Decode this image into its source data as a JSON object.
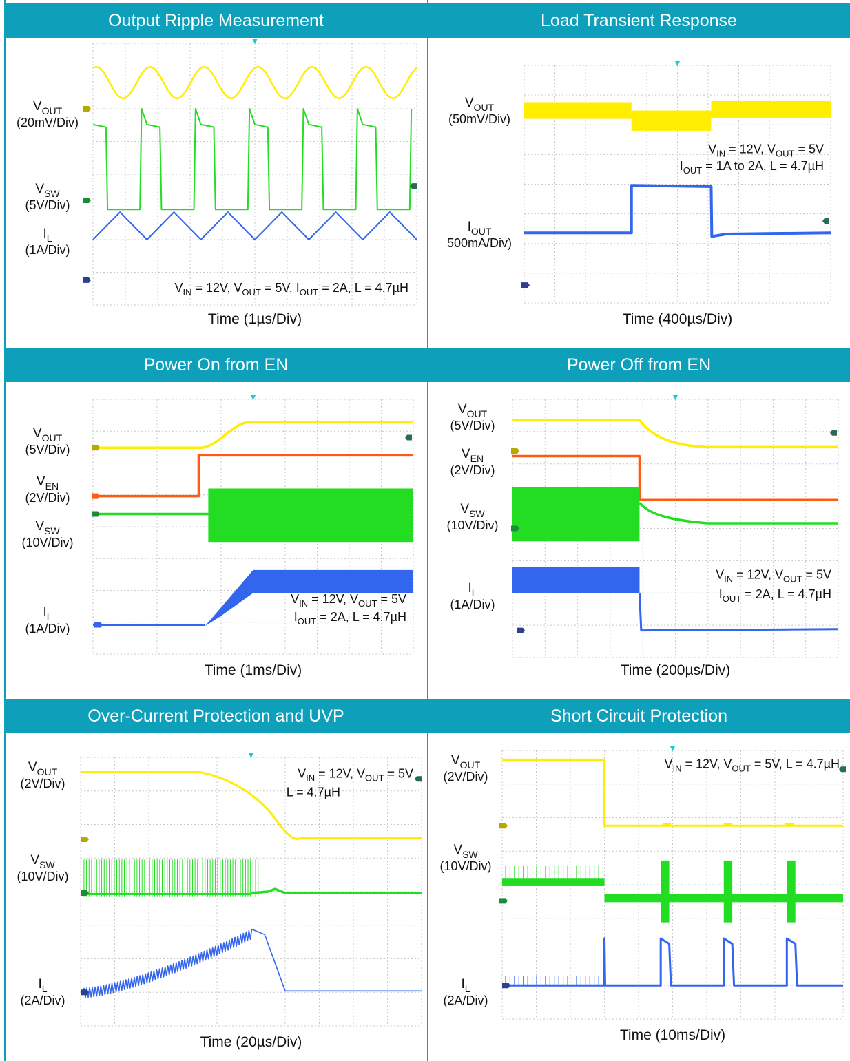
{
  "colors": {
    "header_bg": "#0e9fba",
    "header_text": "#ffffff",
    "grid": "#c8c8c8",
    "vout": "#ffee00",
    "vsw": "#22dd22",
    "il": "#3366ee",
    "ven": "#ff5a14",
    "marker_yellow": "#b5a800",
    "marker_green": "#1f8a3a",
    "marker_blue": "#2d3f8f",
    "marker_right": "#2a6a5a",
    "trigger": "#1cc7dd"
  },
  "chart_data": [
    {
      "type": "line",
      "title": "Output Ripple Measurement",
      "xlabel": "Time (1µs/Div)",
      "x_divisions": 10,
      "y_divisions": 8,
      "grid": true,
      "series": [
        {
          "name": "VOUT",
          "scale": "(20mV/Div)",
          "waveform": "sine",
          "cycles": 6
        },
        {
          "name": "VSW",
          "scale": "(5V/Div)",
          "waveform": "square",
          "cycles": 6
        },
        {
          "name": "IL",
          "scale": "(1A/Div)",
          "waveform": "triangle",
          "cycles": 6
        }
      ],
      "annotation": [
        "VIN = 12V, VOUT = 5V, IOUT = 2A, L = 4.7µH"
      ]
    },
    {
      "type": "line",
      "title": "Load Transient Response",
      "xlabel": "Time (400µs/Div)",
      "x_divisions": 10,
      "y_divisions": 8,
      "grid": true,
      "series": [
        {
          "name": "VOUT",
          "scale": "(50mV/Div)",
          "waveform": "noisy band with dip during load step"
        },
        {
          "name": "IOUT",
          "scale": "500mA/Div)",
          "waveform": "step from 1A to 2A and back"
        }
      ],
      "annotation": [
        "VIN = 12V, VOUT = 5V",
        "IOUT = 1A to 2A, L = 4.7µH"
      ]
    },
    {
      "type": "line",
      "title": "Power On from EN",
      "xlabel": "Time (1ms/Div)",
      "x_divisions": 10,
      "y_divisions": 8,
      "grid": true,
      "series": [
        {
          "name": "VOUT",
          "scale": "(5V/Div)",
          "waveform": "soft-start ramp"
        },
        {
          "name": "VEN",
          "scale": "(2V/Div)",
          "waveform": "step high"
        },
        {
          "name": "VSW",
          "scale": "(10V/Div)",
          "waveform": "switching begins"
        },
        {
          "name": "IL",
          "scale": "(1A/Div)",
          "waveform": "ramp with ripple"
        }
      ],
      "annotation": [
        "VIN = 12V, VOUT = 5V",
        "IOUT = 2A, L = 4.7µH"
      ]
    },
    {
      "type": "line",
      "title": "Power Off from EN",
      "xlabel": "Time (200µs/Div)",
      "x_divisions": 10,
      "y_divisions": 8,
      "grid": true,
      "series": [
        {
          "name": "VOUT",
          "scale": "(5V/Div)",
          "waveform": "exponential decay"
        },
        {
          "name": "VEN",
          "scale": "(2V/Div)",
          "waveform": "step low"
        },
        {
          "name": "VSW",
          "scale": "(10V/Div)",
          "waveform": "switching stops"
        },
        {
          "name": "IL",
          "scale": "(1A/Div)",
          "waveform": "drops to zero"
        }
      ],
      "annotation": [
        "VIN = 12V, VOUT = 5V",
        "IOUT = 2A, L = 4.7µH"
      ]
    },
    {
      "type": "line",
      "title": "Over-Current Protection and UVP",
      "xlabel": "Time (20µs/Div)",
      "x_divisions": 10,
      "y_divisions": 8,
      "grid": true,
      "series": [
        {
          "name": "VOUT",
          "scale": "(2V/Div)",
          "waveform": "collapse to low level"
        },
        {
          "name": "VSW",
          "scale": "(10V/Div)",
          "waveform": "switching then stop"
        },
        {
          "name": "IL",
          "scale": "(2A/Div)",
          "waveform": "rising ramp then drop"
        }
      ],
      "annotation": [
        "VIN = 12V, VOUT = 5V",
        "L = 4.7µH"
      ]
    },
    {
      "type": "line",
      "title": "Short Circuit Protection",
      "xlabel": "Time (10ms/Div)",
      "x_divisions": 10,
      "y_divisions": 8,
      "grid": true,
      "series": [
        {
          "name": "VOUT",
          "scale": "(2V/Div)",
          "waveform": "drop then hiccup bumps"
        },
        {
          "name": "VSW",
          "scale": "(10V/Div)",
          "waveform": "hiccup bursts"
        },
        {
          "name": "IL",
          "scale": "(2A/Div)",
          "waveform": "hiccup current pulses"
        }
      ],
      "annotation": [
        "VIN = 12V, VOUT = 5V, L = 4.7µH"
      ]
    }
  ]
}
